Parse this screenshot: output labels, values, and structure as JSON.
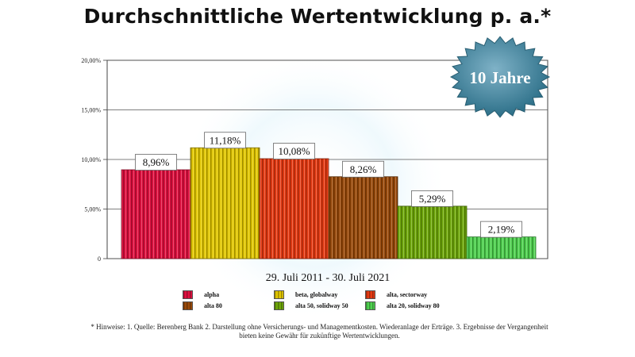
{
  "chart_data": {
    "type": "bar",
    "title": "Durchschnittliche Wertentwicklung p. a.*",
    "xlabel": "29. Juli 2011 - 30. Juli 2021",
    "ylabel": "",
    "ylim": [
      0,
      20
    ],
    "y_ticks": [
      "0",
      "5,00%",
      "10,00%",
      "15,00%",
      "20,00%"
    ],
    "grid": true,
    "badge": "10 Jahre",
    "series": [
      {
        "name": "alpha",
        "value": 8.96,
        "label": "8,96%",
        "color": "#e0103f"
      },
      {
        "name": "beta, globalway",
        "value": 11.18,
        "label": "11,18%",
        "color": "#e3c800"
      },
      {
        "name": "alta, sectorway",
        "value": 10.08,
        "label": "10,08%",
        "color": "#e63a12"
      },
      {
        "name": "alta 80",
        "value": 8.26,
        "label": "8,26%",
        "color": "#9a4a0a"
      },
      {
        "name": "alta 50, solidway 50",
        "value": 5.29,
        "label": "5,29%",
        "color": "#6fa80a"
      },
      {
        "name": "alta 20, solidway 80",
        "value": 2.19,
        "label": "2,19%",
        "color": "#4fd24f"
      }
    ],
    "legend_position": "bottom",
    "footnote": "* Hinweise: 1. Quelle: Berenberg Bank  2. Darstellung ohne Versicherungs- und Managementkosten. Wiederanlage der Erträge.  3. Ergebnisse der Vergangenheit bieten keine Gewähr für zukünftige Wertentwicklungen."
  }
}
